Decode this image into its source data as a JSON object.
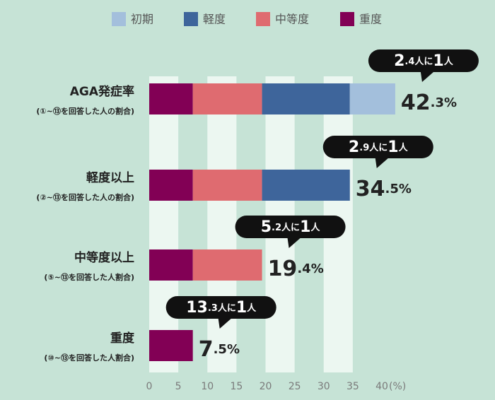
{
  "chart_data": {
    "type": "bar",
    "orientation": "horizontal",
    "stacked": true,
    "categories": [
      "AGA発症率",
      "軽度以上",
      "中等度以上",
      "重度"
    ],
    "category_notes": [
      "(①~⑬を回答した人の割合)",
      "(②~⑬を回答した人の割合)",
      "(⑤~⑬を回答した人割合)",
      "(⑩~⑬を回答した人割合)"
    ],
    "series": [
      {
        "name": "初期",
        "color": "#a3bfdc",
        "values": [
          7.8,
          null,
          null,
          null
        ]
      },
      {
        "name": "軽度",
        "color": "#3e659b",
        "values": [
          15.1,
          15.1,
          null,
          null
        ]
      },
      {
        "name": "中等度",
        "color": "#df6b70",
        "values": [
          11.9,
          11.9,
          11.9,
          null
        ]
      },
      {
        "name": "重度",
        "color": "#820055",
        "values": [
          7.5,
          7.5,
          7.5,
          7.5
        ]
      }
    ],
    "totals": [
      42.3,
      34.5,
      19.4,
      7.5
    ],
    "total_labels": [
      "42.3%",
      "34.5%",
      "19.4%",
      "7.5%"
    ],
    "ratio_labels": [
      "2.4人に1人",
      "2.9人に1人",
      "5.2人に1人",
      "13.3人に1人"
    ],
    "xlim": [
      0,
      40
    ],
    "xticks": [
      0,
      5,
      10,
      15,
      20,
      25,
      30,
      35,
      40
    ],
    "x_unit": "(%)",
    "stripes": true
  }
}
